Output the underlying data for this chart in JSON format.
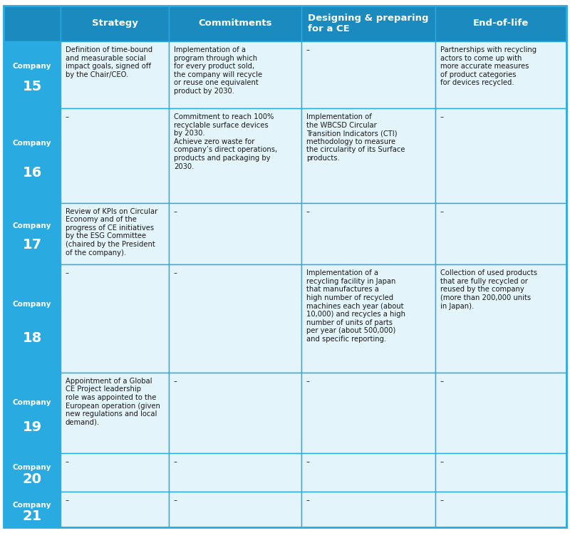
{
  "header": [
    "Strategy",
    "Commitments",
    "Designing & preparing\nfor a CE",
    "End-of-life"
  ],
  "companies": [
    "Company\n15",
    "Company\n16",
    "Company\n17",
    "Company\n18",
    "Company\n19",
    "Company\n20",
    "Company\n21"
  ],
  "cells": [
    [
      "Definition of time-bound\nand measurable social\nimpact goals, signed off\nby the Chair/CEO.",
      "Implementation of a\nprogram through which\nfor every product sold,\nthe company will recycle\nor reuse one equivalent\nproduct by 2030.",
      "–",
      "Partnerships with recycling\nactors to come up with\nmore accurate measures\nof product categories\nfor devices recycled."
    ],
    [
      "–",
      "Commitment to reach 100%\nrecyclable surface devices\nby 2030.\nAchieve zero waste for\ncompany’s direct operations,\nproducts and packaging by\n2030.",
      "Implementation of\nthe WBCSD Circular\nTransition Indicators (CTI)\nmethodology to measure\nthe circularity of its Surface\nproducts.",
      "–"
    ],
    [
      "Review of KPIs on Circular\nEconomy and of the\nprogress of CE initiatives\nby the ESG Committee\n(chaired by the President\nof the company).",
      "–",
      "–",
      "–"
    ],
    [
      "–",
      "–",
      "Implementation of a\nrecycling facility in Japan\nthat manufactures a\nhigh number of recycled\nmachines each year (about\n10,000) and recycles a high\nnumber of units of parts\nper year (about 500,000)\nand specific reporting.",
      "Collection of used products\nthat are fully recycled or\nreused by the company\n(more than 200,000 units\nin Japan)."
    ],
    [
      "Appointment of a Global\nCE Project leadership\nrole was appointed to the\nEuropean operation (given\nnew regulations and local\ndemand).",
      "–",
      "–",
      "–"
    ],
    [
      "–",
      "–",
      "–",
      "–"
    ],
    [
      "–",
      "–",
      "–",
      "–"
    ]
  ],
  "header_bg": "#1a8abf",
  "company_bg": "#29abe2",
  "row_bg_light": "#e4f4fb",
  "border_color": "#29abe2",
  "header_text_color": "#ffffff",
  "company_text_color": "#ffffff",
  "cell_text_color": "#1a1a1a",
  "fig_width": 8.0,
  "fig_height": 7.48,
  "dpi": 100
}
